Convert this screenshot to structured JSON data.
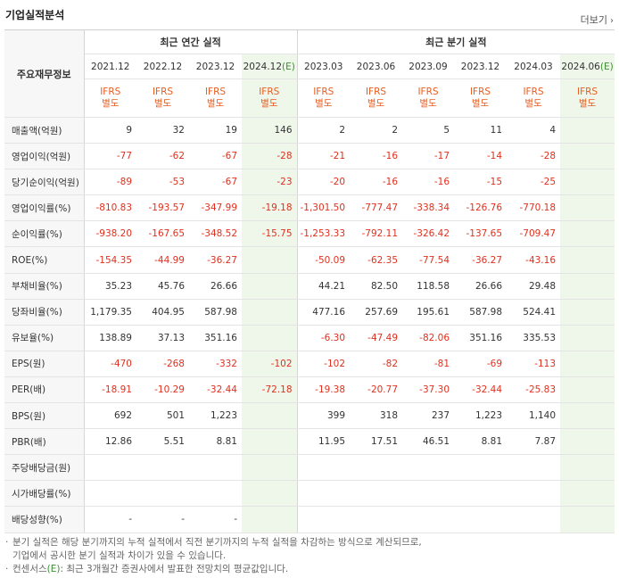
{
  "title": "기업실적분석",
  "more_label": "더보기",
  "corner_label": "주요재무정보",
  "annual_group": "최근 연간 실적",
  "quarter_group": "최근 분기 실적",
  "periods": [
    {
      "label": "2021.12",
      "estimate": ""
    },
    {
      "label": "2022.12",
      "estimate": ""
    },
    {
      "label": "2023.12",
      "estimate": ""
    },
    {
      "label": "2024.12",
      "estimate": "(E)"
    },
    {
      "label": "2023.03",
      "estimate": ""
    },
    {
      "label": "2023.06",
      "estimate": ""
    },
    {
      "label": "2023.09",
      "estimate": ""
    },
    {
      "label": "2023.12",
      "estimate": ""
    },
    {
      "label": "2024.03",
      "estimate": ""
    },
    {
      "label": "2024.06",
      "estimate": "(E)"
    }
  ],
  "ifrs": {
    "line1": "IFRS",
    "line2": "별도"
  },
  "rows": [
    {
      "label": "매출액(억원)",
      "values": [
        "9",
        "32",
        "19",
        "146",
        "2",
        "2",
        "5",
        "11",
        "4",
        ""
      ]
    },
    {
      "label": "영업이익(억원)",
      "values": [
        "-77",
        "-62",
        "-67",
        "-28",
        "-21",
        "-16",
        "-17",
        "-14",
        "-28",
        ""
      ]
    },
    {
      "label": "당기순이익(억원)",
      "values": [
        "-89",
        "-53",
        "-67",
        "-23",
        "-20",
        "-16",
        "-16",
        "-15",
        "-25",
        ""
      ]
    },
    {
      "label": "영업이익률(%)",
      "values": [
        "-810.83",
        "-193.57",
        "-347.99",
        "-19.18",
        "-1,301.50",
        "-777.47",
        "-338.34",
        "-126.76",
        "-770.18",
        ""
      ]
    },
    {
      "label": "순이익률(%)",
      "values": [
        "-938.20",
        "-167.65",
        "-348.52",
        "-15.75",
        "-1,253.33",
        "-792.11",
        "-326.42",
        "-137.65",
        "-709.47",
        ""
      ]
    },
    {
      "label": "ROE(%)",
      "values": [
        "-154.35",
        "-44.99",
        "-36.27",
        "",
        "-50.09",
        "-62.35",
        "-77.54",
        "-36.27",
        "-43.16",
        ""
      ]
    },
    {
      "label": "부채비율(%)",
      "values": [
        "35.23",
        "45.76",
        "26.66",
        "",
        "44.21",
        "82.50",
        "118.58",
        "26.66",
        "29.48",
        ""
      ]
    },
    {
      "label": "당좌비율(%)",
      "values": [
        "1,179.35",
        "404.95",
        "587.98",
        "",
        "477.16",
        "257.69",
        "195.61",
        "587.98",
        "524.41",
        ""
      ]
    },
    {
      "label": "유보율(%)",
      "values": [
        "138.89",
        "37.13",
        "351.16",
        "",
        "-6.30",
        "-47.49",
        "-82.06",
        "351.16",
        "335.53",
        ""
      ]
    },
    {
      "label": "EPS(원)",
      "values": [
        "-470",
        "-268",
        "-332",
        "-102",
        "-102",
        "-82",
        "-81",
        "-69",
        "-113",
        ""
      ]
    },
    {
      "label": "PER(배)",
      "values": [
        "-18.91",
        "-10.29",
        "-32.44",
        "-72.18",
        "-19.38",
        "-20.77",
        "-37.30",
        "-32.44",
        "-25.83",
        ""
      ]
    },
    {
      "label": "BPS(원)",
      "values": [
        "692",
        "501",
        "1,223",
        "",
        "399",
        "318",
        "237",
        "1,223",
        "1,140",
        ""
      ]
    },
    {
      "label": "PBR(배)",
      "values": [
        "12.86",
        "5.51",
        "8.81",
        "",
        "11.95",
        "17.51",
        "46.51",
        "8.81",
        "7.87",
        ""
      ]
    },
    {
      "label": "주당배당금(원)",
      "values": [
        "",
        "",
        "",
        "",
        "",
        "",
        "",
        "",
        "",
        ""
      ]
    },
    {
      "label": "시가배당률(%)",
      "values": [
        "",
        "",
        "",
        "",
        "",
        "",
        "",
        "",
        "",
        ""
      ]
    },
    {
      "label": "배당성향(%)",
      "values": [
        "-",
        "-",
        "-",
        "",
        "",
        "",
        "",
        "",
        "",
        ""
      ]
    }
  ],
  "notes": {
    "note1_line1": "분기 실적은 해당 분기까지의 누적 실적에서 직전 분기까지의 누적 실적을 차감하는 방식으로 계산되므로,",
    "note1_line2": "기업에서 공시한 분기 실적과 차이가 있을 수 있습니다.",
    "note2_prefix": "컨센서스",
    "note2_mark": "(E)",
    "note2_suffix": ": 최근 3개월간 증권사에서 발표한 전망치의 평균값입니다."
  },
  "colors": {
    "negative": "#e0301e",
    "ifrs": "#e85d20",
    "estimate_bg": "#eef7ea"
  }
}
